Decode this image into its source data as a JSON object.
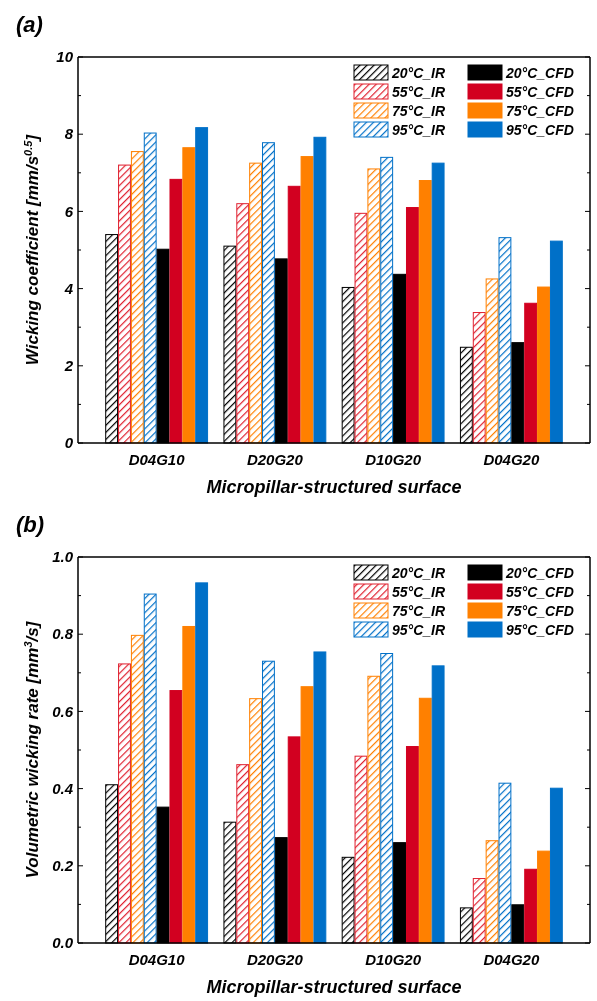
{
  "chart_data": [
    {
      "type": "bar",
      "title": "(a)",
      "xlabel": "Micropillar-structured surface",
      "ylabel": "Wicking coefficient [mm/s$^{0.5}$]",
      "categories": [
        "D04G10",
        "D20G20",
        "D10G20",
        "D04G20"
      ],
      "ylim": [
        0,
        10
      ],
      "yticks": [
        0,
        {
          "value": 1,
          "label": null
        },
        2,
        {
          "value": 3,
          "label": null
        },
        4,
        {
          "value": 5,
          "label": null
        },
        6,
        {
          "value": 7,
          "label": null
        },
        8,
        {
          "value": 9,
          "label": null
        },
        10
      ],
      "legend": "top right",
      "series": [
        {
          "name": "20°C_IR",
          "color": "#000000",
          "values": [
            5.4,
            5.1,
            4.03,
            2.48
          ]
        },
        {
          "name": "55°C_IR",
          "color": "#e0202f",
          "values": [
            7.2,
            6.2,
            5.95,
            3.38
          ]
        },
        {
          "name": "75°C_IR",
          "color": "#ff8000",
          "values": [
            7.55,
            7.25,
            7.1,
            4.25
          ]
        },
        {
          "name": "95°C_IR",
          "color": "#0070c8",
          "values": [
            8.03,
            7.78,
            7.4,
            5.32
          ]
        },
        {
          "name": "20°C_CFD",
          "color": "#000000",
          "values": [
            5.02,
            4.77,
            4.37,
            2.6
          ]
        },
        {
          "name": "55°C_CFD",
          "color": "#d20020",
          "values": [
            6.83,
            6.65,
            6.1,
            3.62
          ]
        },
        {
          "name": "75°C_CFD",
          "color": "#ff8000",
          "values": [
            7.65,
            7.42,
            6.8,
            4.04
          ]
        },
        {
          "name": "95°C_CFD",
          "color": "#0070c8",
          "values": [
            8.17,
            7.92,
            7.25,
            5.23
          ]
        }
      ]
    },
    {
      "type": "bar",
      "title": "(b)",
      "xlabel": "Micropillar-structured surface",
      "ylabel": "Volumetric wicking rate [mm$^{3}$/s]",
      "categories": [
        "D04G10",
        "D20G20",
        "D10G20",
        "D04G20"
      ],
      "ylim": [
        0,
        1
      ],
      "yticks": [
        {
          "value": 0,
          "label": "0.0"
        },
        {
          "value": 0.1,
          "label": null
        },
        {
          "value": 0.2,
          "label": "0.2"
        },
        {
          "value": 0.3,
          "label": null
        },
        {
          "value": 0.4,
          "label": "0.4"
        },
        {
          "value": 0.5,
          "label": null
        },
        {
          "value": 0.6,
          "label": "0.6"
        },
        {
          "value": 0.7,
          "label": null
        },
        {
          "value": 0.8,
          "label": "0.8"
        },
        {
          "value": 0.9,
          "label": null
        },
        {
          "value": 1,
          "label": "1.0"
        }
      ],
      "legend": "top right",
      "series": [
        {
          "name": "20°C_IR",
          "color": "#000000",
          "values": [
            0.41,
            0.313,
            0.222,
            0.091
          ]
        },
        {
          "name": "55°C_IR",
          "color": "#e0202f",
          "values": [
            0.723,
            0.462,
            0.484,
            0.167
          ]
        },
        {
          "name": "75°C_IR",
          "color": "#ff8000",
          "values": [
            0.797,
            0.633,
            0.691,
            0.265
          ]
        },
        {
          "name": "95°C_IR",
          "color": "#0070c8",
          "values": [
            0.904,
            0.73,
            0.75,
            0.414
          ]
        },
        {
          "name": "20°C_CFD",
          "color": "#000000",
          "values": [
            0.352,
            0.273,
            0.26,
            0.099
          ]
        },
        {
          "name": "55°C_CFD",
          "color": "#d20020",
          "values": [
            0.654,
            0.534,
            0.509,
            0.191
          ]
        },
        {
          "name": "75°C_CFD",
          "color": "#ff8000",
          "values": [
            0.82,
            0.664,
            0.634,
            0.238
          ]
        },
        {
          "name": "95°C_CFD",
          "color": "#0070c8",
          "values": [
            0.933,
            0.754,
            0.718,
            0.401
          ]
        }
      ]
    }
  ]
}
